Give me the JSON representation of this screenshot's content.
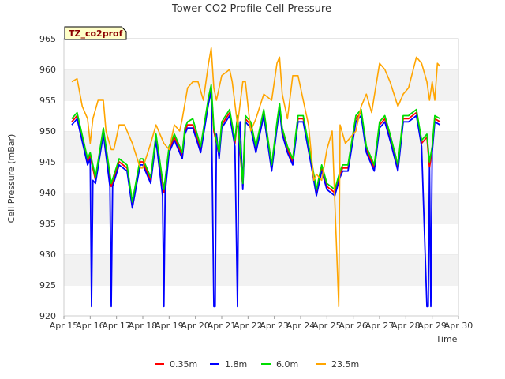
{
  "chart_data": {
    "type": "line",
    "title": "Tower CO2 Profile Cell Pressure",
    "site_badge": "TZ_co2prof",
    "xlabel": "Time",
    "ylabel": "Cell Pressure (mBar)",
    "xlim": [
      0,
      15
    ],
    "ylim": [
      920,
      965
    ],
    "x_tick_labels": [
      "Apr 15",
      "Apr 16",
      "Apr 17",
      "Apr 18",
      "Apr 19",
      "Apr 20",
      "Apr 21",
      "Apr 22",
      "Apr 23",
      "Apr 24",
      "Apr 25",
      "Apr 26",
      "Apr 27",
      "Apr 28",
      "Apr 29",
      "Apr 30"
    ],
    "y_ticks": [
      920,
      925,
      930,
      935,
      940,
      945,
      950,
      955,
      960,
      965
    ],
    "grid": "horizontal bands",
    "legend_position": "bottom-center",
    "series": [
      {
        "name": "0.35m",
        "color": "#ff0000",
        "x": [
          0.3,
          0.5,
          0.9,
          1.0,
          1.2,
          1.5,
          1.8,
          2.1,
          2.4,
          2.6,
          2.9,
          3.0,
          3.3,
          3.5,
          3.8,
          4.0,
          4.2,
          4.5,
          4.6,
          4.7,
          4.9,
          5.2,
          5.5,
          5.6,
          5.7,
          5.9,
          6.0,
          6.3,
          6.5,
          6.6,
          6.8,
          6.9,
          7.1,
          7.3,
          7.6,
          7.9,
          8.1,
          8.2,
          8.3,
          8.5,
          8.7,
          8.9,
          9.1,
          9.4,
          9.6,
          9.8,
          10.0,
          10.3,
          10.5,
          10.6,
          10.8,
          11.1,
          11.3,
          11.5,
          11.8,
          12.0,
          12.2,
          12.4,
          12.7,
          12.9,
          13.1,
          13.4,
          13.6,
          13.8,
          13.9,
          14.0,
          14.1,
          14.3
        ],
        "y": [
          951.5,
          952.5,
          945,
          946,
          942,
          950,
          941,
          945,
          944,
          938,
          945,
          945,
          942,
          949,
          940,
          947,
          949,
          946,
          950,
          951,
          951,
          947,
          955,
          957,
          950,
          946,
          951,
          953,
          948,
          952,
          941,
          952,
          951,
          947,
          953,
          944,
          951,
          954,
          950,
          947,
          945,
          952,
          952,
          945,
          940,
          944,
          941,
          940,
          943,
          944,
          944,
          952,
          953,
          947,
          944,
          951,
          952,
          949,
          944,
          952,
          952,
          953,
          948,
          949,
          944,
          947,
          952,
          951.5
        ]
      },
      {
        "name": "1.8m",
        "color": "#0000ff",
        "x": [
          0.3,
          0.5,
          0.9,
          1.0,
          1.05,
          1.1,
          1.2,
          1.5,
          1.75,
          1.8,
          1.85,
          2.1,
          2.4,
          2.6,
          2.9,
          3.0,
          3.3,
          3.5,
          3.75,
          3.8,
          3.85,
          4.0,
          4.2,
          4.5,
          4.6,
          4.7,
          4.9,
          5.2,
          5.5,
          5.6,
          5.7,
          5.75,
          5.8,
          5.9,
          6.0,
          6.3,
          6.5,
          6.6,
          6.65,
          6.7,
          6.75,
          6.8,
          6.9,
          7.1,
          7.3,
          7.6,
          7.9,
          8.1,
          8.2,
          8.3,
          8.5,
          8.7,
          8.9,
          9.1,
          9.4,
          9.6,
          9.8,
          10.0,
          10.3,
          10.5,
          10.6,
          10.8,
          11.1,
          11.3,
          11.5,
          11.8,
          12.0,
          12.2,
          12.4,
          12.7,
          12.9,
          13.1,
          13.4,
          13.6,
          13.8,
          13.85,
          13.9,
          13.95,
          14.0,
          14.1,
          14.3
        ],
        "y": [
          951,
          952,
          944.5,
          945.5,
          921.5,
          942,
          941.5,
          949.5,
          941,
          921.5,
          941,
          944.5,
          943.5,
          937.5,
          944.5,
          944.5,
          941.5,
          948.5,
          939.5,
          921.5,
          940,
          946.5,
          948.5,
          945.5,
          949.5,
          950.5,
          950.5,
          946.5,
          954.5,
          956.5,
          921.5,
          921.5,
          949.5,
          945.5,
          950.5,
          952.5,
          947.5,
          921.5,
          947.5,
          951.5,
          946,
          940.5,
          951.5,
          950.5,
          946.5,
          952.5,
          943.5,
          950.5,
          953.5,
          949.5,
          946.5,
          944.5,
          951.5,
          951.5,
          944.5,
          939.5,
          943.5,
          940.5,
          939.5,
          942.5,
          943.5,
          943.5,
          951.5,
          952.5,
          946.5,
          943.5,
          950.5,
          951.5,
          948.5,
          943.5,
          951.5,
          951.5,
          952.5,
          947.5,
          921.5,
          921.5,
          944,
          921.5,
          946.5,
          951.5,
          951
        ]
      },
      {
        "name": "6.0m",
        "color": "#00dd00",
        "x": [
          0.3,
          0.5,
          0.9,
          1.0,
          1.2,
          1.5,
          1.8,
          2.1,
          2.4,
          2.6,
          2.9,
          3.0,
          3.3,
          3.5,
          3.8,
          4.0,
          4.2,
          4.5,
          4.6,
          4.7,
          4.9,
          5.2,
          5.5,
          5.6,
          5.7,
          5.9,
          6.0,
          6.3,
          6.5,
          6.6,
          6.8,
          6.9,
          7.1,
          7.3,
          7.6,
          7.9,
          8.1,
          8.2,
          8.3,
          8.5,
          8.7,
          8.9,
          9.1,
          9.4,
          9.6,
          9.8,
          10.0,
          10.3,
          10.5,
          10.6,
          10.8,
          11.1,
          11.3,
          11.5,
          11.8,
          12.0,
          12.2,
          12.4,
          12.7,
          12.9,
          13.1,
          13.4,
          13.6,
          13.8,
          13.9,
          14.0,
          14.1,
          14.3
        ],
        "y": [
          952,
          953,
          945.5,
          946.5,
          942.5,
          950.5,
          941.5,
          945.5,
          944.5,
          938.5,
          945.5,
          945.5,
          942.5,
          949.5,
          940.5,
          947.5,
          949.5,
          946.5,
          950.5,
          951.5,
          952,
          947.5,
          955.5,
          957.5,
          950.5,
          946.5,
          951.5,
          953.5,
          948.5,
          952.5,
          941.5,
          952.5,
          951.5,
          947.5,
          953.5,
          944.5,
          951.5,
          954.5,
          950.5,
          947.5,
          945.5,
          952.5,
          952.5,
          945.5,
          940.5,
          944.5,
          941.5,
          940.5,
          943.5,
          944.5,
          944.5,
          952.5,
          953.5,
          947.5,
          944.5,
          951.5,
          952.5,
          949.5,
          944.5,
          952.5,
          952.5,
          953.5,
          948.5,
          949.5,
          945,
          947.5,
          952.5,
          952
        ]
      },
      {
        "name": "23.5m",
        "color": "#ffa500",
        "x": [
          0.3,
          0.5,
          0.7,
          0.9,
          1.0,
          1.1,
          1.3,
          1.5,
          1.6,
          1.8,
          1.9,
          2.1,
          2.3,
          2.6,
          2.9,
          3.0,
          3.3,
          3.5,
          3.8,
          4.0,
          4.2,
          4.4,
          4.5,
          4.7,
          4.9,
          5.1,
          5.3,
          5.5,
          5.6,
          5.7,
          5.8,
          6.0,
          6.3,
          6.4,
          6.6,
          6.8,
          6.9,
          7.1,
          7.3,
          7.6,
          7.9,
          8.1,
          8.2,
          8.3,
          8.5,
          8.7,
          8.9,
          9.1,
          9.3,
          9.5,
          9.6,
          9.8,
          10.0,
          10.2,
          10.45,
          10.5,
          10.7,
          10.9,
          11.1,
          11.3,
          11.5,
          11.7,
          12.0,
          12.2,
          12.4,
          12.7,
          12.9,
          13.1,
          13.4,
          13.6,
          13.8,
          13.9,
          14.0,
          14.1,
          14.2,
          14.3
        ],
        "y": [
          958,
          958.5,
          954,
          952,
          948,
          952,
          955,
          955,
          950,
          947,
          947,
          951,
          951,
          948,
          944,
          944,
          948,
          951,
          948,
          947,
          951,
          950,
          952,
          957,
          958,
          958,
          955,
          961,
          963.5,
          957,
          955,
          959,
          960,
          958,
          951,
          958,
          958,
          950,
          952,
          956,
          955,
          961,
          962,
          956,
          952,
          959,
          959,
          955,
          951,
          942,
          943,
          942,
          947,
          950,
          921.5,
          951,
          948,
          949,
          950,
          954,
          956,
          953,
          961,
          960,
          958,
          954,
          956,
          957,
          962,
          961,
          958,
          955,
          958,
          955,
          961,
          960.5
        ]
      }
    ]
  }
}
